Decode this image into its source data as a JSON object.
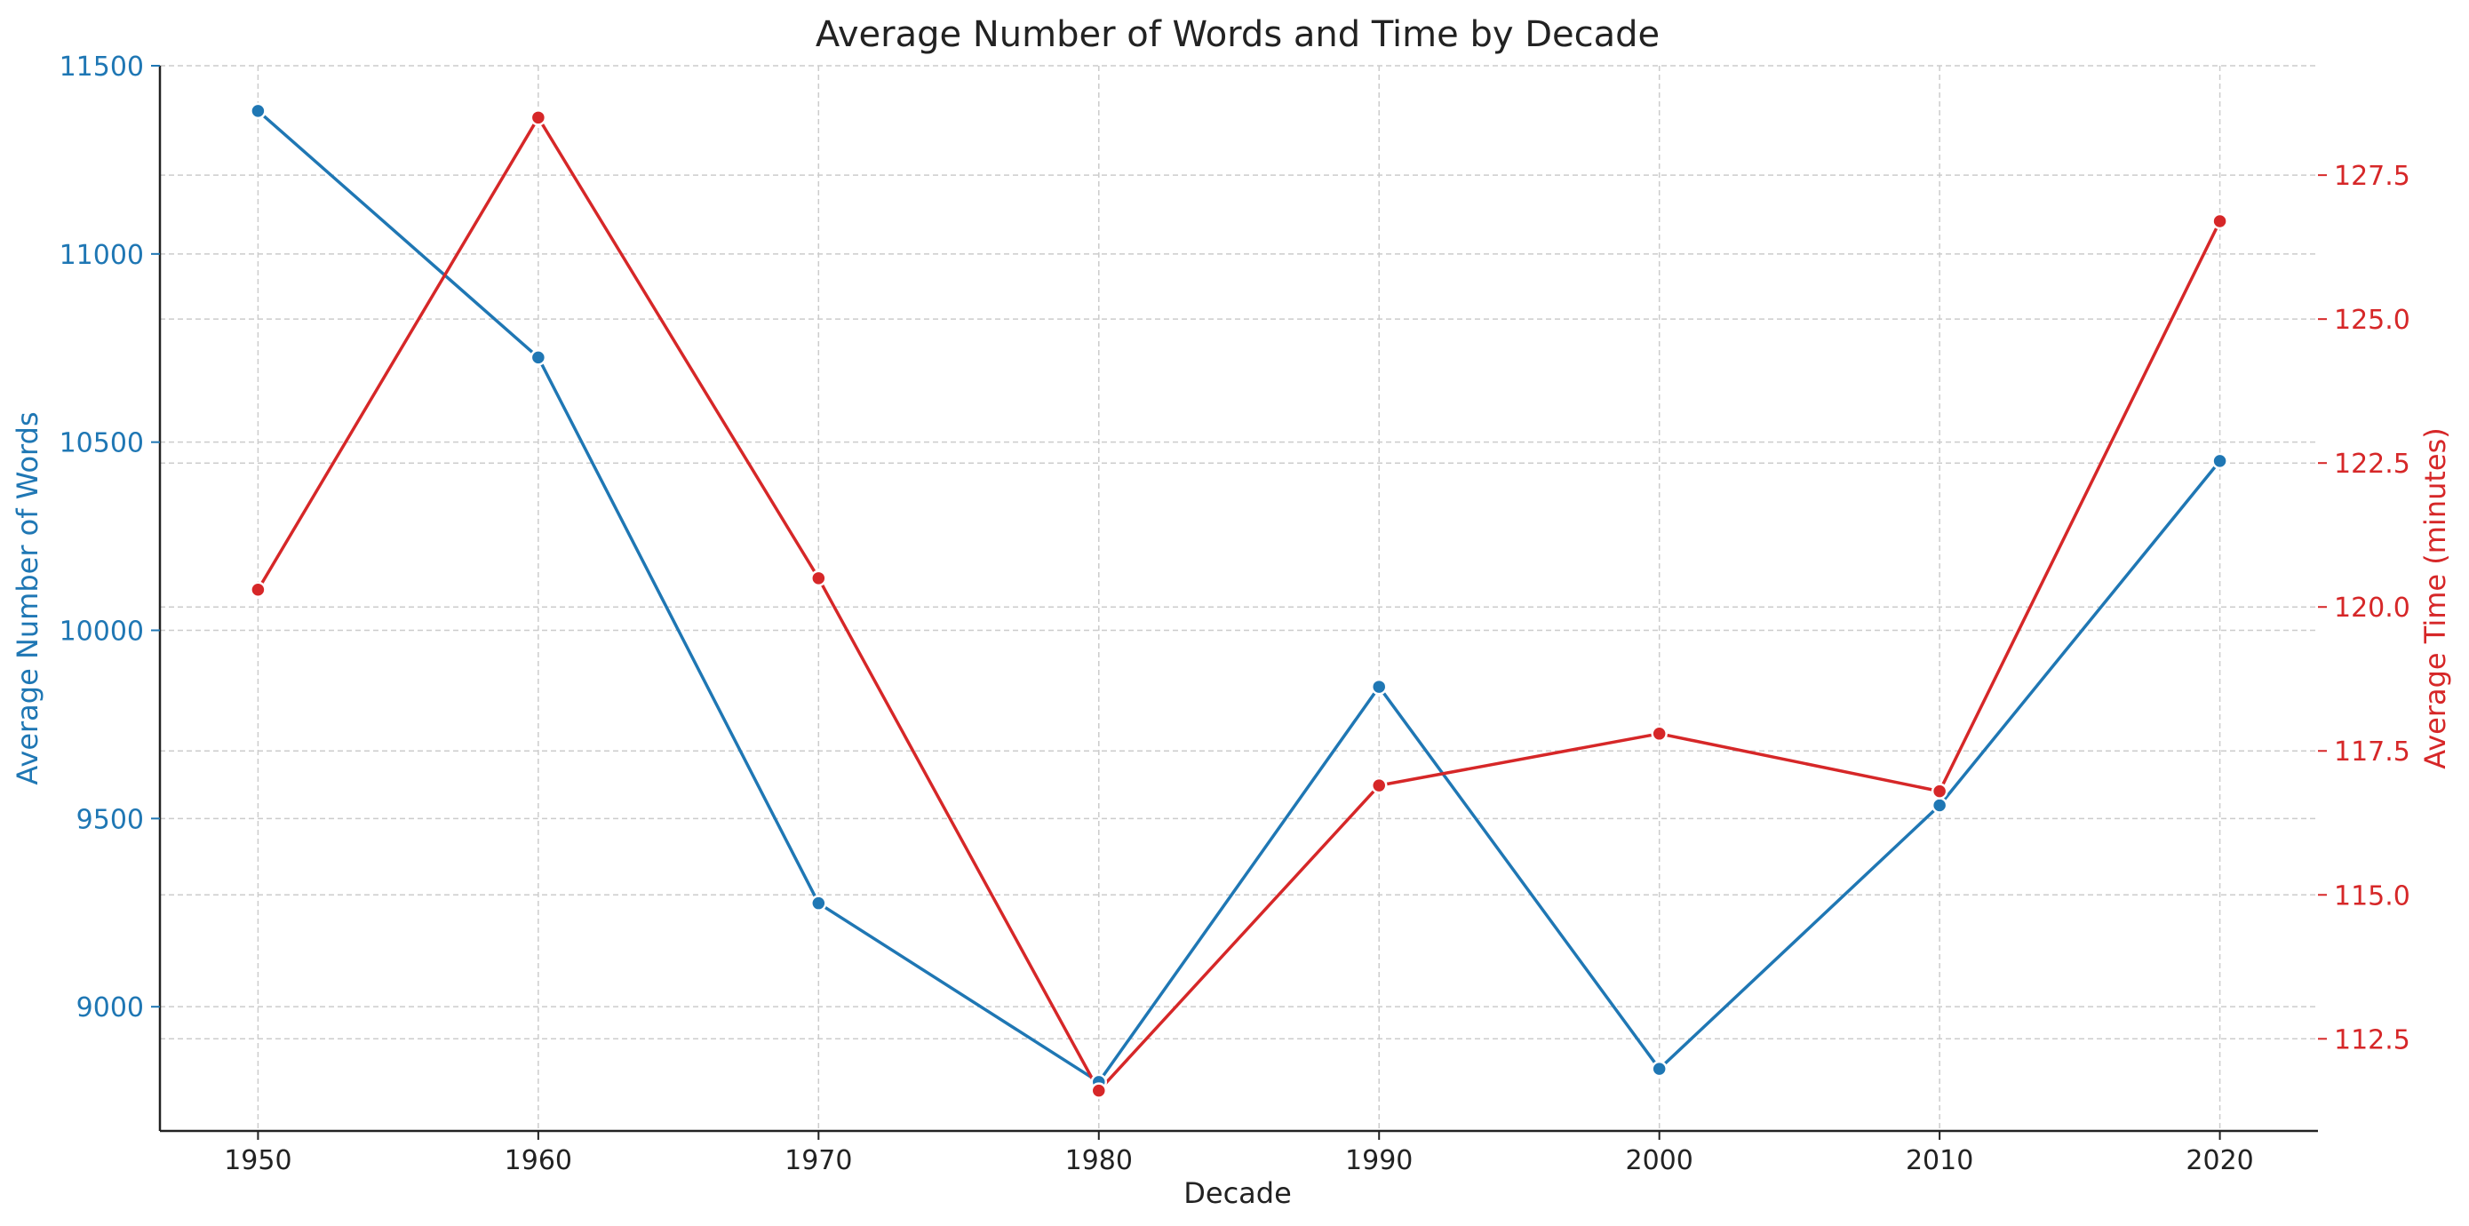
{
  "chart_data": {
    "type": "line",
    "title": "Average Number of Words and Time by Decade",
    "xlabel": "Decade",
    "x": [
      1950,
      1960,
      1970,
      1980,
      1990,
      2000,
      2010,
      2020
    ],
    "xticks": [
      "1950",
      "1960",
      "1970",
      "1980",
      "1990",
      "2000",
      "2010",
      "2020"
    ],
    "grid": true,
    "series": [
      {
        "axis": "left",
        "color": "#1f77b4",
        "values": [
          11380,
          10725,
          9275,
          8800,
          9850,
          8835,
          9535,
          10450
        ]
      },
      {
        "axis": "right",
        "color": "#d62728",
        "values": [
          120.3,
          128.5,
          120.5,
          111.6,
          116.9,
          117.8,
          116.8,
          126.7
        ]
      }
    ],
    "y_left": {
      "label": "Average Number of Words",
      "color": "#1f77b4",
      "ticks": [
        9000,
        9500,
        10000,
        10500,
        11000,
        11500
      ],
      "tick_labels": [
        "9000",
        "9500",
        "10000",
        "10500",
        "11000",
        "11500"
      ],
      "lim": [
        8670,
        11500
      ]
    },
    "y_right": {
      "label": "Average Time (minutes)",
      "color": "#d62728",
      "ticks": [
        112.5,
        115.0,
        117.5,
        120.0,
        122.5,
        125.0,
        127.5
      ],
      "tick_labels": [
        "112.5",
        "115.0",
        "117.5",
        "120.0",
        "122.5",
        "125.0",
        "127.5"
      ],
      "lim": [
        110.9,
        129.4
      ]
    }
  }
}
